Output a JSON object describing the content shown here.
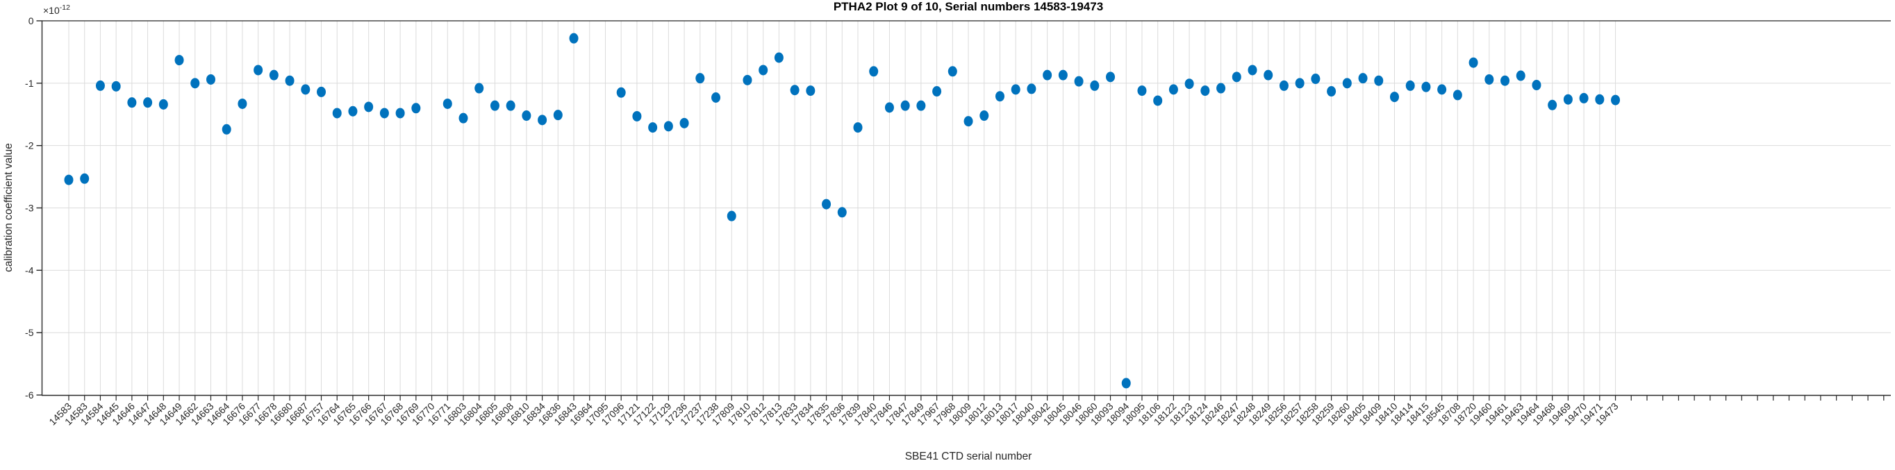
{
  "figure": {
    "title": "PTHA2 Plot 9 of 10, Serial numbers 14583-19473",
    "xlabel": "SBE41 CTD serial number",
    "ylabel": "calibration coefficient value",
    "exp_base": "×10",
    "exp_power": "-12"
  },
  "chart_data": {
    "type": "scatter",
    "title": "PTHA2 Plot 9 of 10, Serial numbers 14583-19473",
    "xlabel": "SBE41 CTD serial number",
    "ylabel": "calibration coefficient value",
    "y_multiplier": "1e-12",
    "ylim": [
      -6,
      0
    ],
    "yticks": [
      "0",
      "-1",
      "-2",
      "-3",
      "-4",
      "-5",
      "-6"
    ],
    "grid": true,
    "legend": "none",
    "marker": "filled-circle",
    "marker_color": "#0072BD",
    "categories": [
      "14583",
      "14583",
      "14584",
      "14645",
      "14646",
      "14647",
      "14648",
      "14649",
      "14662",
      "14663",
      "14664",
      "16676",
      "16677",
      "16678",
      "16680",
      "16687",
      "16757",
      "16764",
      "16765",
      "16766",
      "16767",
      "16768",
      "16769",
      "16770",
      "16771",
      "16803",
      "16804",
      "16805",
      "16808",
      "16810",
      "16834",
      "16836",
      "16843",
      "16964",
      "17095",
      "17096",
      "17121",
      "17122",
      "17129",
      "17236",
      "17237",
      "17238",
      "17809",
      "17810",
      "17812",
      "17813",
      "17833",
      "17834",
      "17835",
      "17836",
      "17839",
      "17840",
      "17846",
      "17847",
      "17849",
      "17967",
      "17968",
      "18009",
      "18012",
      "18013",
      "18017",
      "18040",
      "18042",
      "18045",
      "18046",
      "18060",
      "18093",
      "18094",
      "18095",
      "18106",
      "18122",
      "18123",
      "18124",
      "18246",
      "18247",
      "18248",
      "18249",
      "18256",
      "18257",
      "18258",
      "18259",
      "18260",
      "18405",
      "18409",
      "18410",
      "18414",
      "18415",
      "18545",
      "18708",
      "18720",
      "19460",
      "19461",
      "19463",
      "19464",
      "19468",
      "19469",
      "19470",
      "19471",
      "19473"
    ],
    "values": [
      -2.55,
      -2.53,
      -1.04,
      -1.05,
      -1.31,
      -1.31,
      -1.34,
      -0.63,
      -1.0,
      -0.94,
      -1.74,
      -1.33,
      -0.79,
      -0.87,
      -0.96,
      -1.1,
      -1.14,
      -1.48,
      -1.45,
      -1.38,
      -1.48,
      -1.48,
      -1.4,
      null,
      -1.33,
      -1.56,
      -1.08,
      -1.36,
      -1.36,
      -1.52,
      -1.59,
      -1.51,
      -0.28,
      null,
      null,
      -1.15,
      -1.53,
      -1.71,
      -1.69,
      -1.64,
      -0.92,
      -1.23,
      -3.13,
      -0.95,
      -0.79,
      -0.59,
      -1.11,
      -1.12,
      -2.94,
      -3.07,
      -1.71,
      -0.81,
      -1.39,
      -1.36,
      -1.36,
      -1.13,
      -0.81,
      -1.61,
      -1.52,
      -1.21,
      -1.1,
      -1.09,
      -0.87,
      -0.87,
      -0.97,
      -1.04,
      -0.9,
      -5.81,
      -1.12,
      -1.28,
      -1.1,
      -1.01,
      -1.12,
      -1.08,
      -0.9,
      -0.79,
      -0.87,
      -1.04,
      -1.0,
      -0.93,
      -1.13,
      -1.0,
      -0.92,
      -0.96,
      -1.22,
      -1.04,
      -1.06,
      -1.1,
      -1.19,
      -0.67,
      -0.94,
      -0.96,
      -0.88,
      -1.03,
      -1.35,
      -1.26,
      -1.24,
      -1.26,
      -1.27
    ]
  },
  "style": {
    "axis_color": "#262626",
    "grid_color": "#dbdbdb",
    "background": "#ffffff"
  }
}
